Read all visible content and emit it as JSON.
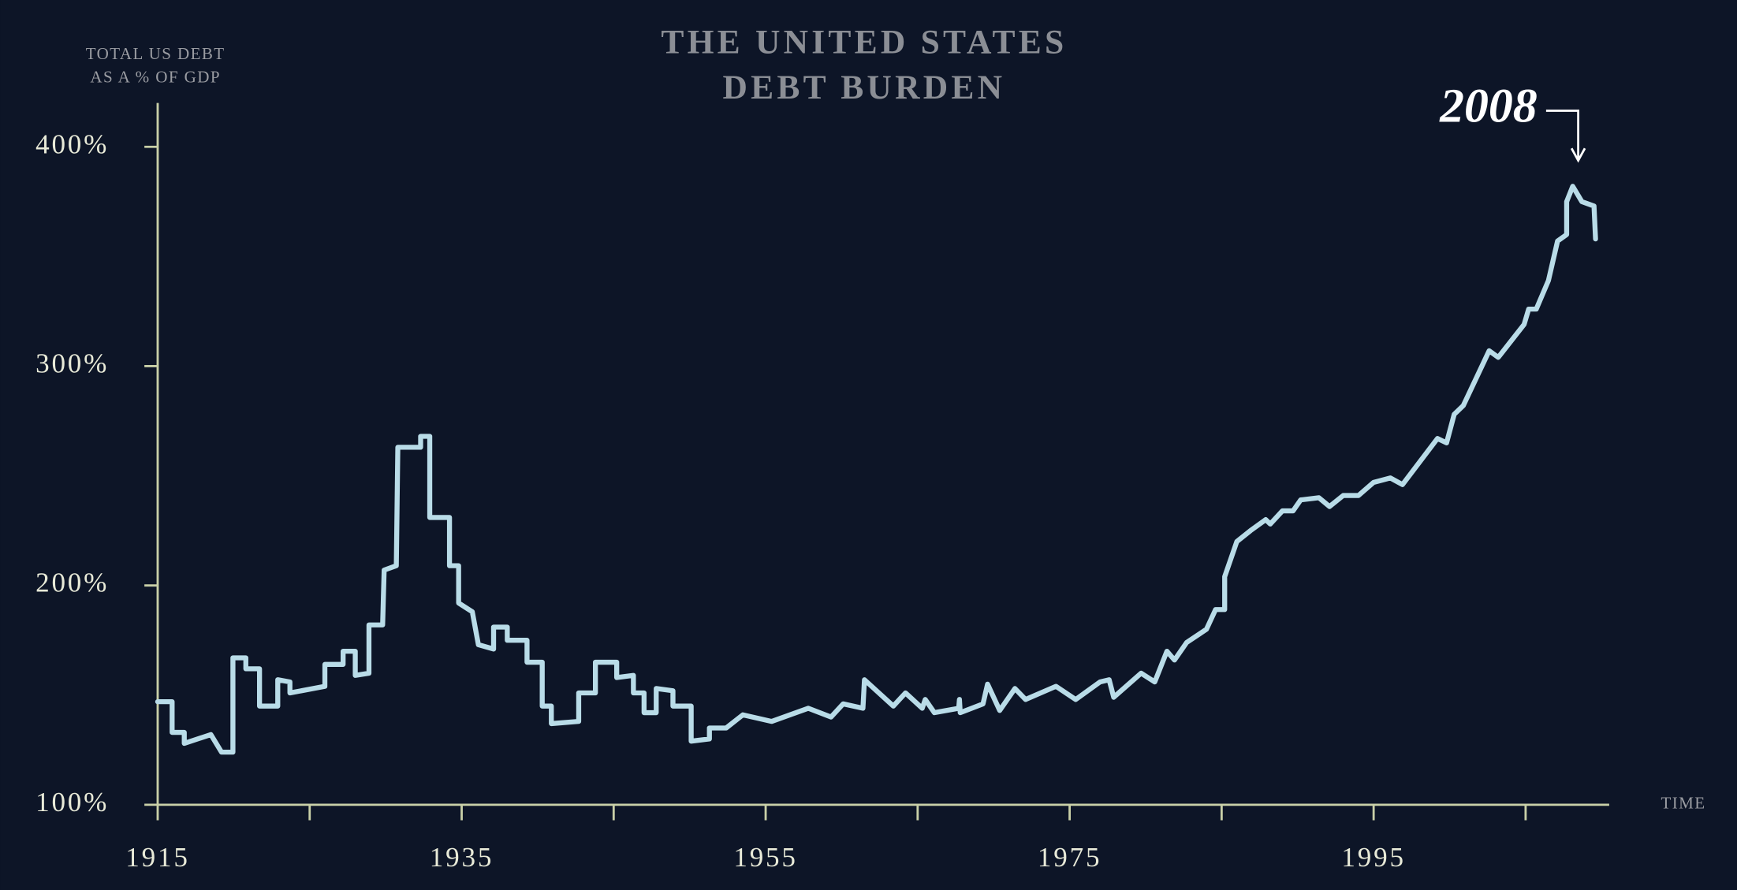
{
  "chart_data": {
    "type": "line",
    "step": false,
    "title": [
      "THE UNITED STATES",
      "DEBT BURDEN"
    ],
    "ylabel": [
      "TOTAL US DEBT",
      "AS A % OF GDP"
    ],
    "xlabel": "TIME",
    "annotation": {
      "text": "2008"
    },
    "color": "#b9dce8",
    "axis_color": "#c9d0a8",
    "xlim": [
      1915,
      2010.5
    ],
    "ylim": [
      100,
      420
    ],
    "xticks": [
      1915,
      1935,
      1955,
      1975,
      1995
    ],
    "minor_xticks": [
      1925,
      1945,
      1965,
      1985,
      2005
    ],
    "yticks": [
      {
        "value": 100,
        "label": "100%"
      },
      {
        "value": 200,
        "label": "200%"
      },
      {
        "value": 300,
        "label": "300%"
      },
      {
        "value": 400,
        "label": "400%"
      }
    ],
    "x": [
      1915,
      1915.95,
      1915.95,
      1916.75,
      1916.75,
      1918.5,
      1919.2,
      1919.95,
      1919.95,
      1920.8,
      1920.8,
      1921.7,
      1921.7,
      1922.9,
      1922.9,
      1923.7,
      1923.7,
      1926,
      1926,
      1927.2,
      1927.2,
      1928,
      1928,
      1928.9,
      1928.9,
      1929.8,
      1929.9,
      1930.7,
      1930.8,
      1932.3,
      1932.3,
      1932.9,
      1932.9,
      1934.2,
      1934.2,
      1934.8,
      1934.8,
      1935.7,
      1936.1,
      1937.1,
      1937.1,
      1938,
      1938,
      1939.3,
      1939.3,
      1940.3,
      1940.3,
      1940.9,
      1940.9,
      1942.7,
      1942.7,
      1943.8,
      1943.8,
      1945.2,
      1945.2,
      1946.3,
      1946.3,
      1947,
      1947,
      1947.8,
      1947.8,
      1948.9,
      1948.9,
      1950.1,
      1950.1,
      1951.3,
      1951.3,
      1952.4,
      1953.5,
      1955.4,
      1957.8,
      1959.3,
      1960.1,
      1961.4,
      1961.5,
      1963.4,
      1964.2,
      1965.3,
      1965.5,
      1966.1,
      1967.7,
      1967.75,
      1967.8,
      1969.3,
      1969.6,
      1970.4,
      1971.4,
      1972.1,
      1974.1,
      1975.4,
      1977,
      1977.6,
      1977.9,
      1979.7,
      1980.6,
      1981.4,
      1981.9,
      1982.7,
      1984,
      1984.6,
      1985.2,
      1985.2,
      1986,
      1986.9,
      1987.9,
      1988.2,
      1989,
      1989.7,
      1990.2,
      1991.4,
      1992.1,
      1993,
      1994,
      1995,
      1996.1,
      1996.9,
      1999.2,
      1999.8,
      2000.3,
      2000.9,
      2002.6,
      2003.2,
      2004.9,
      2005.2,
      2005.7,
      2006.5,
      2007.1,
      2007.7,
      2007.7,
      2008.1,
      2008.7,
      2009.5,
      2009.6
    ],
    "values": [
      147,
      147,
      133,
      133,
      128,
      132,
      124,
      124,
      167,
      167,
      162,
      162,
      145,
      145,
      157,
      156,
      151,
      154,
      164,
      164,
      170,
      170,
      159,
      160,
      182,
      182,
      207,
      209,
      263,
      263,
      268,
      268,
      231,
      231,
      209,
      209,
      192,
      188,
      173,
      171,
      181,
      181,
      175,
      175,
      165,
      165,
      145,
      145,
      137,
      138,
      151,
      151,
      165,
      165,
      158,
      159,
      151,
      151,
      142,
      142,
      153,
      152,
      145,
      145,
      129,
      130,
      135,
      135,
      141,
      138,
      144,
      140,
      146,
      144,
      157,
      145,
      151,
      144,
      148,
      142,
      144,
      148,
      142,
      146,
      155,
      143,
      153,
      148,
      154,
      148,
      156,
      157,
      149,
      160,
      156,
      170,
      166,
      174,
      180,
      189,
      189,
      204,
      220,
      225,
      230,
      228,
      234,
      234,
      239,
      240,
      236,
      241,
      241,
      247,
      249,
      246,
      267,
      265,
      278,
      282,
      307,
      304,
      319,
      326,
      326,
      339,
      357,
      360,
      375,
      382,
      375,
      373,
      358
    ]
  }
}
